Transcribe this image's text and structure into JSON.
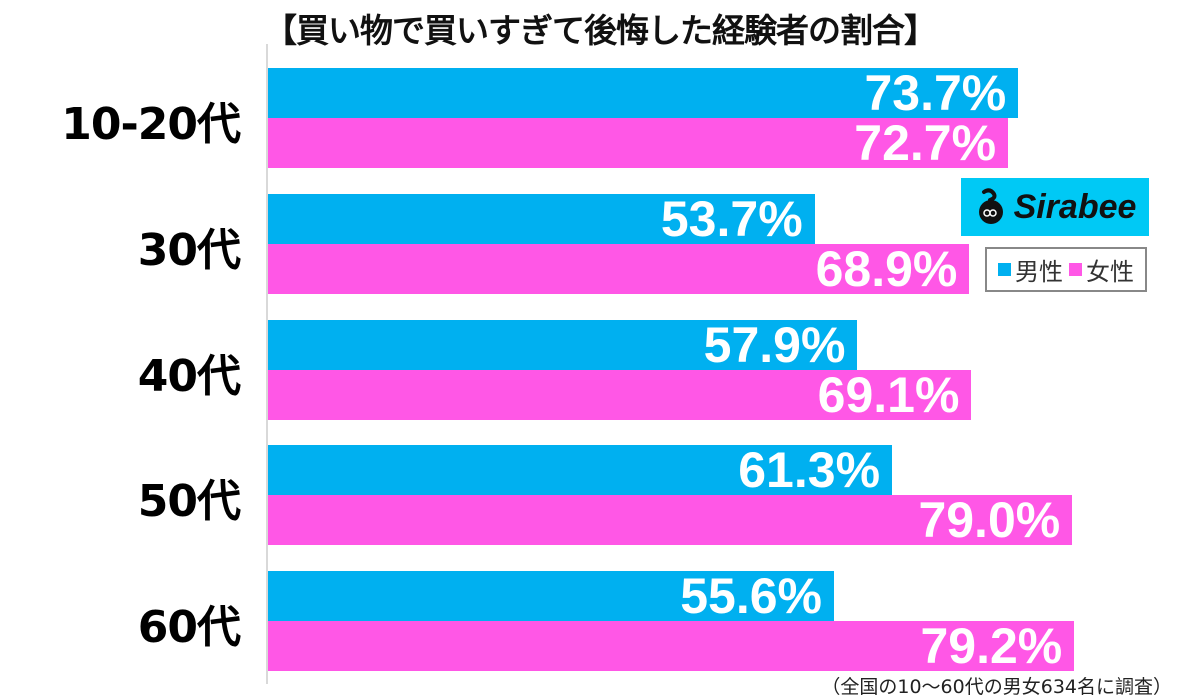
{
  "title": "【買い物で買いすぎて後悔した経験者の割合】",
  "colors": {
    "male": "#00b0f0",
    "female": "#ff57e6",
    "logo_bg": "#00c9f5"
  },
  "logo": {
    "text": "Sirabee"
  },
  "legend": {
    "male": "男性",
    "female": "女性"
  },
  "note": "（全国の10〜60代の男女634名に調査）",
  "groups": [
    {
      "label": "10-20代",
      "male": "73.7%",
      "female": "72.7%"
    },
    {
      "label": "30代",
      "male": "53.7%",
      "female": "68.9%"
    },
    {
      "label": "40代",
      "male": "57.9%",
      "female": "69.1%"
    },
    {
      "label": "50代",
      "male": "61.3%",
      "female": "79.0%"
    },
    {
      "label": "60代",
      "male": "55.6%",
      "female": "79.2%"
    }
  ],
  "chart_data": {
    "type": "bar",
    "orientation": "horizontal",
    "title": "【買い物で買いすぎて後悔した経験者の割合】",
    "categories": [
      "10-20代",
      "30代",
      "40代",
      "50代",
      "60代"
    ],
    "series": [
      {
        "name": "男性",
        "color": "#00b0f0",
        "values": [
          73.7,
          53.7,
          57.9,
          61.3,
          55.6
        ]
      },
      {
        "name": "女性",
        "color": "#ff57e6",
        "values": [
          72.7,
          68.9,
          69.1,
          79.0,
          79.2
        ]
      }
    ],
    "xlabel": "",
    "ylabel": "",
    "unit": "%",
    "xlim": [
      0,
      90
    ],
    "grid": false,
    "legend_position": "right",
    "annotations": [
      "（全国の10〜60代の男女634名に調査）"
    ]
  }
}
